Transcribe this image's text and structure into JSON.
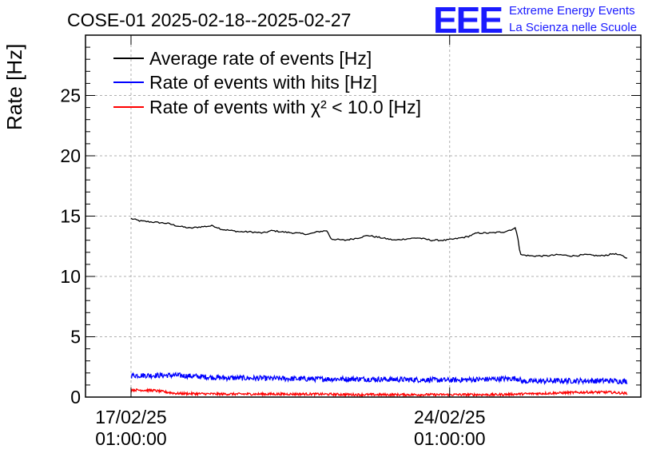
{
  "chart_data": {
    "type": "line",
    "title": "COSE-01 2025-02-18--2025-02-27",
    "ylabel": "Rate [Hz]",
    "xlabel": "",
    "ylim": [
      0,
      30
    ],
    "yticks": [
      "0",
      "5",
      "10",
      "15",
      "20",
      "25"
    ],
    "ytick_values": [
      0,
      5,
      10,
      15,
      20,
      25
    ],
    "xlim_days": [
      -1.0,
      11.2
    ],
    "xticks": [
      {
        "date": "17/02/25",
        "time": "01:00:00",
        "day": 0
      },
      {
        "date": "24/02/25",
        "time": "01:00:00",
        "day": 7
      }
    ],
    "grid": true,
    "legend_position": "top-left",
    "logo": {
      "mark": "EEE",
      "line1": "Extreme Energy Events",
      "line2": "La Scienza nelle Scuole"
    },
    "series": [
      {
        "name": "Average rate of events [Hz]",
        "color": "#000000",
        "x_days": [
          0.0,
          0.2,
          0.5,
          0.8,
          1.0,
          1.3,
          1.5,
          1.8,
          2.0,
          2.2,
          2.4,
          2.6,
          2.9,
          3.1,
          3.3,
          3.6,
          3.9,
          4.1,
          4.3,
          4.4,
          4.7,
          5.0,
          5.2,
          5.5,
          5.8,
          6.0,
          6.3,
          6.6,
          6.9,
          7.1,
          7.4,
          7.6,
          7.9,
          8.2,
          8.45,
          8.5,
          8.55,
          8.8,
          9.1,
          9.4,
          9.7,
          10.0,
          10.3,
          10.5,
          10.6,
          10.8,
          10.9
        ],
        "values": [
          14.8,
          14.6,
          14.5,
          14.4,
          14.2,
          14.0,
          14.1,
          14.2,
          13.9,
          13.8,
          13.7,
          13.7,
          13.6,
          13.8,
          13.7,
          13.6,
          13.5,
          13.7,
          13.8,
          13.1,
          13.0,
          13.2,
          13.4,
          13.2,
          13.0,
          13.1,
          13.2,
          13.0,
          13.0,
          13.1,
          13.3,
          13.6,
          13.6,
          13.7,
          14.0,
          13.2,
          11.8,
          11.7,
          11.7,
          11.8,
          11.7,
          11.8,
          11.7,
          11.8,
          11.9,
          11.7,
          11.5
        ]
      },
      {
        "name": "Rate of events with hits [Hz]",
        "color": "#0000ff",
        "x_days": [
          0.0,
          1.0,
          2.0,
          3.0,
          4.0,
          5.0,
          6.0,
          7.0,
          8.0,
          8.5,
          8.6,
          9.5,
          10.0,
          10.5,
          10.9
        ],
        "values": [
          1.8,
          1.8,
          1.6,
          1.55,
          1.5,
          1.5,
          1.45,
          1.4,
          1.5,
          1.55,
          1.3,
          1.35,
          1.35,
          1.35,
          1.3
        ]
      },
      {
        "name": "Rate of events with χ² < 10.0 [Hz]",
        "color": "#ff0000",
        "x_days": [
          0.0,
          0.5,
          0.8,
          1.0,
          2.0,
          3.0,
          4.0,
          5.0,
          6.0,
          7.0,
          8.0,
          8.5,
          9.0,
          9.5,
          10.0,
          10.5,
          10.9
        ],
        "values": [
          0.6,
          0.55,
          0.4,
          0.3,
          0.25,
          0.25,
          0.25,
          0.2,
          0.2,
          0.2,
          0.2,
          0.25,
          0.3,
          0.35,
          0.4,
          0.4,
          0.3
        ]
      }
    ]
  }
}
